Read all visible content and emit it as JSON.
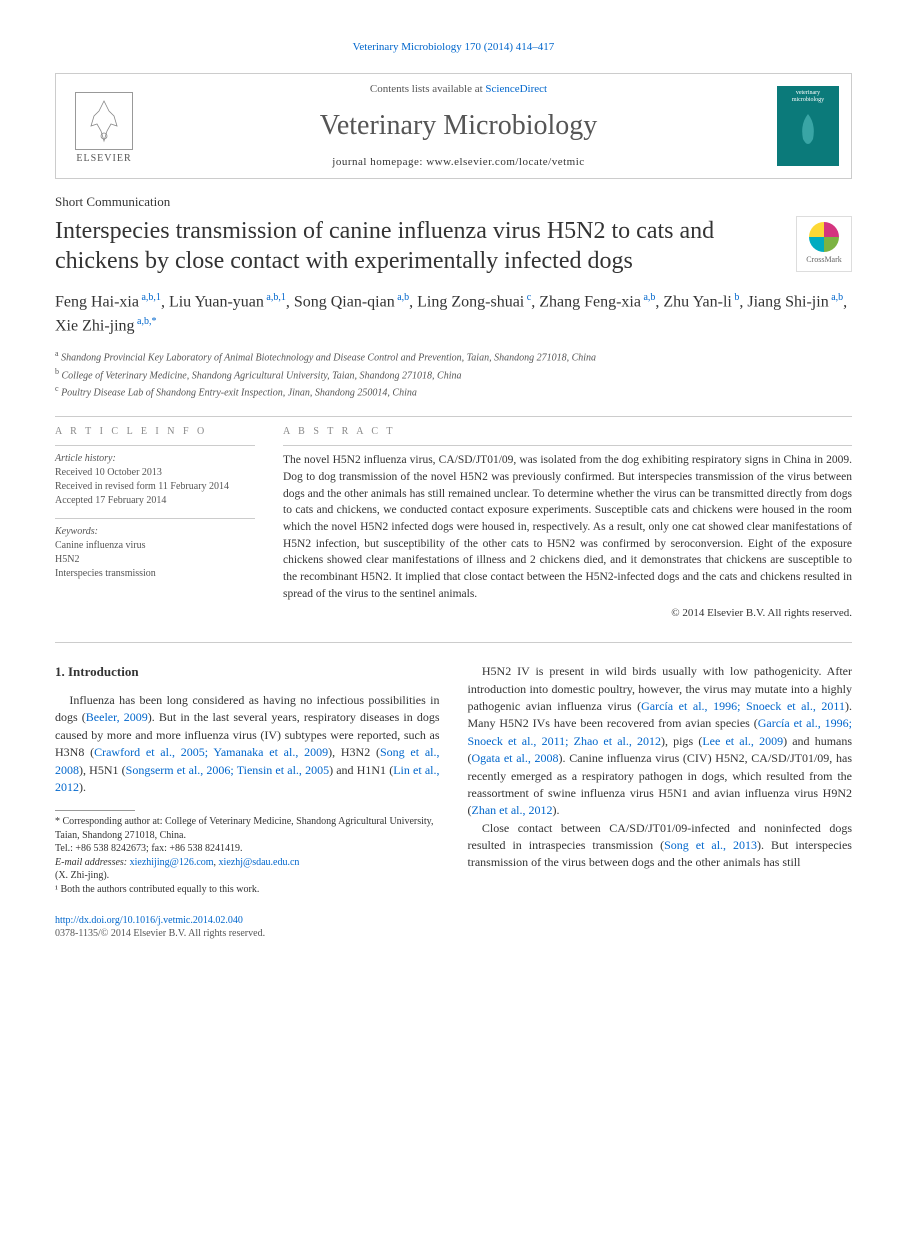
{
  "journal_ref": "Veterinary Microbiology 170 (2014) 414–417",
  "header": {
    "contents_prefix": "Contents lists available at ",
    "contents_link": "ScienceDirect",
    "journal_title": "Veterinary Microbiology",
    "homepage_prefix": "journal homepage: ",
    "homepage_url": "www.elsevier.com/locate/vetmic",
    "publisher_name": "ELSEVIER",
    "cover_text": "veterinary microbiology"
  },
  "article_type": "Short Communication",
  "title": "Interspecies transmission of canine influenza virus H5N2 to cats and chickens by close contact with experimentally infected dogs",
  "crossmark_label": "CrossMark",
  "authors_html": "Feng Hai-xia<sup> a,b,1</sup>, Liu Yuan-yuan<sup> a,b,1</sup>, Song Qian-qian<sup> a,b</sup>, Ling Zong-shuai<sup> c</sup>, Zhang Feng-xia<sup> a,b</sup>, Zhu Yan-li<sup> b</sup>, Jiang Shi-jin<sup> a,b</sup>, Xie Zhi-jing<sup> a,b,*</sup>",
  "affiliations": {
    "a": "Shandong Provincial Key Laboratory of Animal Biotechnology and Disease Control and Prevention, Taian, Shandong 271018, China",
    "b": "College of Veterinary Medicine, Shandong Agricultural University, Taian, Shandong 271018, China",
    "c": "Poultry Disease Lab of Shandong Entry-exit Inspection, Jinan, Shandong 250014, China"
  },
  "article_info": {
    "heading": "A R T I C L E   I N F O",
    "history_label": "Article history:",
    "received": "Received 10 October 2013",
    "revised": "Received in revised form 11 February 2014",
    "accepted": "Accepted 17 February 2014",
    "keywords_label": "Keywords:",
    "keywords": [
      "Canine influenza virus",
      "H5N2",
      "Interspecies transmission"
    ]
  },
  "abstract": {
    "heading": "A B S T R A C T",
    "text": "The novel H5N2 influenza virus, CA/SD/JT01/09, was isolated from the dog exhibiting respiratory signs in China in 2009. Dog to dog transmission of the novel H5N2 was previously confirmed. But interspecies transmission of the virus between dogs and the other animals has still remained unclear. To determine whether the virus can be transmitted directly from dogs to cats and chickens, we conducted contact exposure experiments. Susceptible cats and chickens were housed in the room which the novel H5N2 infected dogs were housed in, respectively. As a result, only one cat showed clear manifestations of H5N2 infection, but susceptibility of the other cats to H5N2 was confirmed by seroconversion. Eight of the exposure chickens showed clear manifestations of illness and 2 chickens died, and it demonstrates that chickens are susceptible to the recombinant H5N2. It implied that close contact between the H5N2-infected dogs and the cats and chickens resulted in spread of the virus to the sentinel animals.",
    "copyright": "© 2014 Elsevier B.V. All rights reserved."
  },
  "body": {
    "section_heading": "1. Introduction",
    "left_para": "Influenza has been long considered as having no infectious possibilities in dogs (<a>Beeler, 2009</a>). But in the last several years, respiratory diseases in dogs caused by more and more influenza virus (IV) subtypes were reported, such as H3N8 (<a>Crawford et al., 2005; Yamanaka et al., 2009</a>), H3N2 (<a>Song et al., 2008</a>), H5N1 (<a>Songserm et al., 2006; Tiensin et al., 2005</a>) and H1N1 (<a>Lin et al., 2012</a>).",
    "right_para1": "H5N2 IV is present in wild birds usually with low pathogenicity. After introduction into domestic poultry, however, the virus may mutate into a highly pathogenic avian influenza virus (<a>García et al., 1996; Snoeck et al., 2011</a>). Many H5N2 IVs have been recovered from avian species (<a>García et al., 1996; Snoeck et al., 2011; Zhao et al., 2012</a>), pigs (<a>Lee et al., 2009</a>) and humans (<a>Ogata et al., 2008</a>). Canine influenza virus (CIV) H5N2, CA/SD/JT01/09, has recently emerged as a respiratory pathogen in dogs, which resulted from the reassortment of swine influenza virus H5N1 and avian influenza virus H9N2 (<a>Zhan et al., 2012</a>).",
    "right_para2": "Close contact between CA/SD/JT01/09-infected and noninfected dogs resulted in intraspecies transmission (<a>Song et al., 2013</a>). But interspecies transmission of the virus between dogs and the other animals has still"
  },
  "footnotes": {
    "corr_label": "* Corresponding author at: College of Veterinary Medicine, Shandong Agricultural University, Taian, Shandong 271018, China.",
    "tel": "Tel.: +86 538 8242673; fax: +86 538 8241419.",
    "email_label": "E-mail addresses: ",
    "email1": "xiezhijing@126.com",
    "email2": "xiezhj@sdau.edu.cn",
    "email_owner": "(X. Zhi-jing).",
    "equal": "¹ Both the authors contributed equally to this work."
  },
  "doi": {
    "url": "http://dx.doi.org/10.1016/j.vetmic.2014.02.040",
    "issn_line": "0378-1135/© 2014 Elsevier B.V. All rights reserved."
  },
  "colors": {
    "link": "#0066cc",
    "text": "#333333",
    "muted": "#555555",
    "border": "#cccccc",
    "cover_bg": "#0b7a7a"
  }
}
